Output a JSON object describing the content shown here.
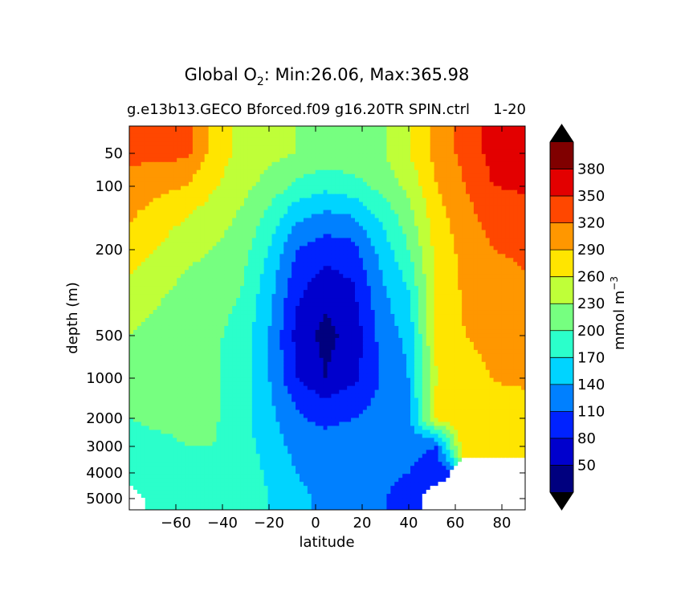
{
  "chart_data": {
    "type": "heatmap",
    "title": "Global O",
    "title_subscript": "2",
    "title_rest": ": Min:26.06, Max:365.98",
    "subtitle_left": "g.e13b13.GECO Bforced.f09 g16.20TR SPIN.ctrl",
    "subtitle_right": "1-20",
    "xlabel": "latitude",
    "ylabel": "depth (m)",
    "x_ticks": [
      -60,
      -40,
      -20,
      0,
      20,
      40,
      60,
      80
    ],
    "xlim": [
      -80,
      90
    ],
    "y_ticks": [
      50,
      100,
      200,
      500,
      1000,
      2000,
      3000,
      4000,
      5000
    ],
    "y_scale": "nonlinear",
    "colorbar": {
      "label_main": "mmol m",
      "label_exp": "−3",
      "tick_labels": [
        50,
        80,
        110,
        140,
        170,
        200,
        230,
        260,
        290,
        320,
        350,
        380
      ],
      "levels": [
        20,
        50,
        80,
        110,
        140,
        170,
        200,
        230,
        260,
        290,
        320,
        350,
        380,
        410
      ],
      "colors": [
        "#00007f",
        "#0000cd",
        "#0022ff",
        "#0080ff",
        "#00d4ff",
        "#2bffcb",
        "#76ff80",
        "#bfff38",
        "#ffe500",
        "#ff9700",
        "#ff4700",
        "#e30000",
        "#800000"
      ],
      "extend": "both",
      "under_color": "#000000",
      "over_color": "#000000"
    },
    "depth_profile": [
      {
        "depth": 50,
        "values": [
          330,
          330,
          330,
          280,
          250,
          240,
          230,
          225,
          225,
          225,
          260,
          300,
          330,
          360,
          365
        ]
      },
      {
        "depth": 100,
        "values": [
          310,
          300,
          290,
          265,
          240,
          220,
          195,
          180,
          190,
          210,
          240,
          290,
          320,
          350,
          355
        ]
      },
      {
        "depth": 200,
        "values": [
          280,
          260,
          240,
          230,
          215,
          170,
          110,
          95,
          100,
          150,
          200,
          270,
          300,
          320,
          325
        ]
      },
      {
        "depth": 500,
        "values": [
          230,
          220,
          210,
          205,
          190,
          140,
          70,
          40,
          60,
          120,
          150,
          270,
          290,
          300,
          310
        ]
      },
      {
        "depth": 1000,
        "values": [
          200,
          200,
          200,
          205,
          185,
          140,
          80,
          50,
          70,
          110,
          140,
          260,
          280,
          290,
          300
        ]
      },
      {
        "depth": 2000,
        "values": [
          200,
          205,
          205,
          205,
          180,
          150,
          115,
          100,
          110,
          120,
          130,
          270,
          285,
          280,
          270
        ]
      },
      {
        "depth": 3000,
        "values": [
          190,
          195,
          200,
          200,
          185,
          155,
          130,
          125,
          125,
          125,
          120,
          110,
          285,
          285,
          265
        ]
      },
      {
        "depth": 4000,
        "values": [
          180,
          185,
          190,
          195,
          190,
          165,
          140,
          130,
          130,
          120,
          110,
          90,
          null,
          null,
          null
        ]
      },
      {
        "depth": 5000,
        "values": [
          null,
          175,
          185,
          195,
          190,
          170,
          145,
          135,
          130,
          115,
          90,
          null,
          null,
          null,
          null
        ]
      }
    ],
    "profile_latitudes": [
      -80,
      -68,
      -56,
      -44,
      -32,
      -20,
      -8,
      4,
      16,
      28,
      40,
      52,
      64,
      76,
      90
    ]
  }
}
